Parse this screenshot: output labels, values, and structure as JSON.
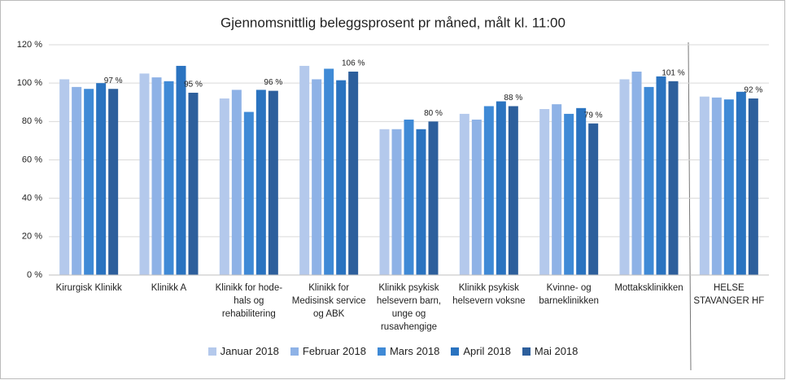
{
  "chart_data": {
    "type": "bar",
    "title": "Gjennomsnittlig beleggsprosent pr måned, målt kl. 11:00",
    "categories": [
      "Kirurgisk Klinikk",
      "Klinikk A",
      "Klinikk for hode-hals og rehabilitering",
      "Klinikk for Medisinsk service og ABK",
      "Klinikk psykisk helsevern barn, unge og rusavhengige",
      "Klinikk psykisk helsevern voksne",
      "Kvinne- og barneklinikken",
      "Mottaksklinikken",
      "HELSE STAVANGER HF"
    ],
    "series": [
      {
        "name": "Januar 2018",
        "color": "#b4c9ec",
        "values": [
          102,
          105,
          92,
          109,
          76,
          84,
          86.5,
          102,
          93
        ]
      },
      {
        "name": "Februar 2018",
        "color": "#8eb2e6",
        "values": [
          98,
          103,
          96.5,
          102,
          76,
          81,
          89,
          106,
          92.5
        ]
      },
      {
        "name": "Mars 2018",
        "color": "#3f8ad6",
        "values": [
          97,
          101,
          85,
          107.5,
          81,
          88,
          84,
          98,
          91.5
        ]
      },
      {
        "name": "April 2018",
        "color": "#2a73c0",
        "values": [
          100,
          109,
          96.5,
          101.5,
          76,
          90.5,
          87,
          103.5,
          95.5
        ]
      },
      {
        "name": "Mai 2018",
        "color": "#2d5f9c",
        "values": [
          97,
          95,
          96,
          106,
          80,
          88,
          79,
          101,
          92
        ],
        "value_labels": [
          "97 %",
          "95 %",
          "96 %",
          "106 %",
          "80 %",
          "88 %",
          "79 %",
          "101 %",
          "92 %"
        ]
      }
    ],
    "ylim": [
      0,
      120
    ],
    "yticks": [
      {
        "value": 0,
        "label": "0 %"
      },
      {
        "value": 20,
        "label": "20 %"
      },
      {
        "value": 40,
        "label": "40 %"
      },
      {
        "value": 60,
        "label": "60 %"
      },
      {
        "value": 80,
        "label": "80 %"
      },
      {
        "value": 100,
        "label": "100 %"
      },
      {
        "value": 120,
        "label": "120 %"
      }
    ],
    "grid": true,
    "legend": "bottom"
  }
}
